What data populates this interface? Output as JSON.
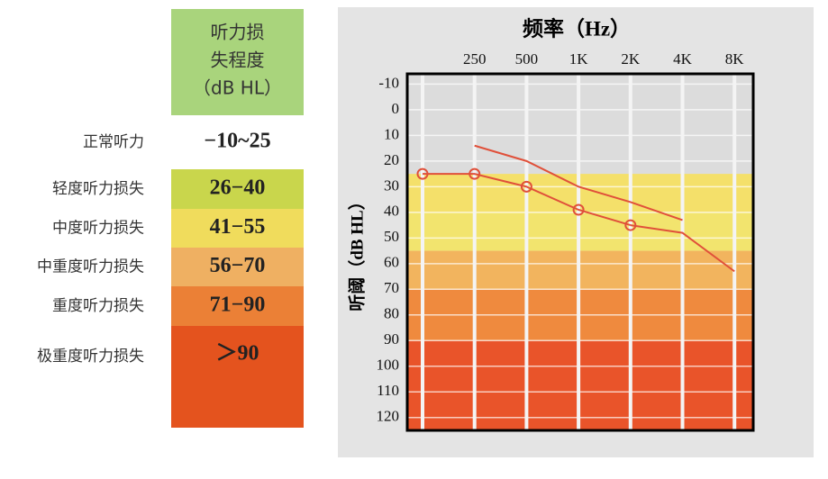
{
  "legend": {
    "header": [
      "听力损",
      "失程度",
      "（dB HL）"
    ],
    "header_color": "#a9d47c",
    "rows": [
      {
        "label": "正常听力",
        "range": "−10~25",
        "color": "#ffffff"
      },
      {
        "label": "轻度听力损失",
        "range": "26−40",
        "color": "#c9d64c"
      },
      {
        "label": "中度听力损失",
        "range": "41−55",
        "color": "#f0dc5c"
      },
      {
        "label": "中重度听力损失",
        "range": "56−70",
        "color": "#efb062"
      },
      {
        "label": "重度听力损失",
        "range": "71−90",
        "color": "#eb8036"
      },
      {
        "label": "极重度听力损失",
        "range": "＞90",
        "color": "#e4531e"
      }
    ]
  },
  "chart_data": {
    "type": "line",
    "title": "频率（Hz）",
    "y_label": "听阈（dB HL）",
    "categories": [
      null,
      "250",
      "500",
      "1K",
      "2K",
      "4K",
      "8K"
    ],
    "ylim": [
      -14,
      125
    ],
    "yticks": [
      -10,
      0,
      10,
      20,
      30,
      40,
      50,
      60,
      70,
      80,
      90,
      100,
      110,
      120
    ],
    "y_reversed": true,
    "grid": true,
    "bands": [
      {
        "from": 25,
        "to": 40,
        "color": "#f4e06a"
      },
      {
        "from": 40,
        "to": 55,
        "color": "#f2e46e"
      },
      {
        "from": 55,
        "to": 70,
        "color": "#f2b45e"
      },
      {
        "from": 70,
        "to": 90,
        "color": "#ef8a3e"
      },
      {
        "from": 90,
        "to": 125,
        "color": "#e9542a"
      }
    ],
    "series": [
      {
        "color": "#e0503a",
        "marker": "circle",
        "values": [
          25,
          25,
          30,
          39,
          45,
          null,
          null
        ]
      },
      {
        "color": "#e0503a",
        "values": [
          null,
          null,
          null,
          null,
          45,
          48,
          63
        ]
      },
      {
        "color": "#e0503a",
        "values": [
          null,
          14,
          20,
          30,
          36,
          43,
          null
        ]
      }
    ]
  }
}
